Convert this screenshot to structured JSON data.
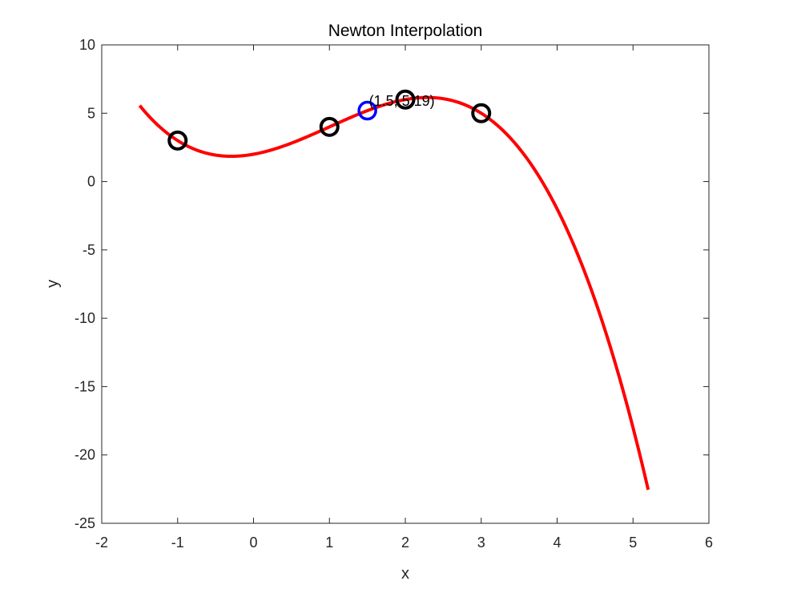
{
  "chart_data": {
    "type": "line",
    "title": "Newton Interpolation",
    "xlabel": "x",
    "ylabel": "y",
    "xlim": [
      -2,
      6
    ],
    "ylim": [
      -25,
      10
    ],
    "xticks": [
      -2,
      -1,
      0,
      1,
      2,
      3,
      4,
      5,
      6
    ],
    "yticks": [
      -25,
      -20,
      -15,
      -10,
      -5,
      0,
      5,
      10
    ],
    "grid": false,
    "nodes": {
      "x": [
        -1,
        1,
        2,
        3
      ],
      "y": [
        3,
        4,
        6,
        5
      ],
      "color": "#000000",
      "marker": "circle"
    },
    "curve": {
      "x_range": [
        -1.5,
        5.2
      ],
      "polynomial": "newton",
      "color": "#ff0000"
    },
    "query_point": {
      "x": 1.5,
      "y": 5.19,
      "color": "#0000ff",
      "label": "(1.5, 5.19)"
    }
  }
}
